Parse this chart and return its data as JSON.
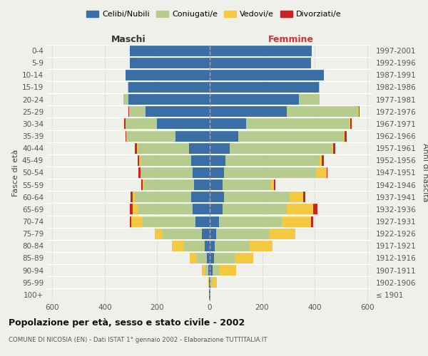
{
  "age_groups": [
    "100+",
    "95-99",
    "90-94",
    "85-89",
    "80-84",
    "75-79",
    "70-74",
    "65-69",
    "60-64",
    "55-59",
    "50-54",
    "45-49",
    "40-44",
    "35-39",
    "30-34",
    "25-29",
    "20-24",
    "15-19",
    "10-14",
    "5-9",
    "0-4"
  ],
  "birth_years": [
    "≤ 1901",
    "1902-1906",
    "1907-1911",
    "1912-1916",
    "1917-1921",
    "1922-1926",
    "1927-1931",
    "1932-1936",
    "1937-1941",
    "1942-1946",
    "1947-1951",
    "1952-1956",
    "1957-1961",
    "1962-1966",
    "1967-1971",
    "1972-1976",
    "1977-1981",
    "1982-1986",
    "1987-1991",
    "1992-1996",
    "1997-2001"
  ],
  "colors": {
    "celibi": "#3a6ea5",
    "coniugati": "#b5cc8e",
    "vedovi": "#f5c842",
    "divorziati": "#cc2222"
  },
  "maschi": {
    "celibi": [
      2,
      2,
      5,
      10,
      20,
      30,
      55,
      65,
      70,
      60,
      65,
      70,
      80,
      130,
      200,
      245,
      310,
      310,
      320,
      305,
      305
    ],
    "coniugati": [
      0,
      2,
      15,
      40,
      80,
      150,
      200,
      210,
      215,
      190,
      195,
      195,
      195,
      185,
      120,
      60,
      20,
      2,
      0,
      0,
      0
    ],
    "vedovi": [
      0,
      2,
      10,
      25,
      45,
      30,
      45,
      20,
      10,
      5,
      5,
      3,
      3,
      2,
      2,
      2,
      0,
      0,
      0,
      0,
      0
    ],
    "divorziati": [
      0,
      0,
      0,
      0,
      0,
      0,
      5,
      10,
      8,
      5,
      8,
      8,
      8,
      5,
      3,
      2,
      0,
      0,
      0,
      0,
      0
    ]
  },
  "femmine": {
    "celibi": [
      2,
      3,
      10,
      15,
      20,
      25,
      35,
      50,
      55,
      50,
      55,
      60,
      75,
      110,
      140,
      295,
      340,
      415,
      435,
      385,
      390
    ],
    "coniugati": [
      0,
      5,
      25,
      80,
      130,
      200,
      240,
      245,
      250,
      180,
      350,
      360,
      390,
      400,
      390,
      270,
      80,
      5,
      0,
      0,
      0
    ],
    "vedovi": [
      0,
      20,
      65,
      70,
      90,
      100,
      110,
      100,
      50,
      15,
      40,
      8,
      5,
      5,
      5,
      2,
      0,
      0,
      0,
      0,
      0
    ],
    "divorziati": [
      0,
      0,
      0,
      0,
      0,
      0,
      10,
      15,
      10,
      5,
      5,
      8,
      8,
      8,
      5,
      3,
      0,
      0,
      0,
      0,
      0
    ]
  },
  "title": "Popolazione per età, sesso e stato civile - 2002",
  "subtitle": "COMUNE DI NICOSIA (EN) - Dati ISTAT 1° gennaio 2002 - Elaborazione TUTTITALIA.IT",
  "header_left": "Maschi",
  "header_right": "Femmine",
  "ylabel_left": "Fasce di età",
  "ylabel_right": "Anni di nascita",
  "xlim": 620,
  "legend_labels": [
    "Celibi/Nubili",
    "Coniugati/e",
    "Vedovi/e",
    "Divorziati/e"
  ],
  "background_color": "#f0f0eb",
  "tick_color": "#555555",
  "grid_color": "#cccccc"
}
